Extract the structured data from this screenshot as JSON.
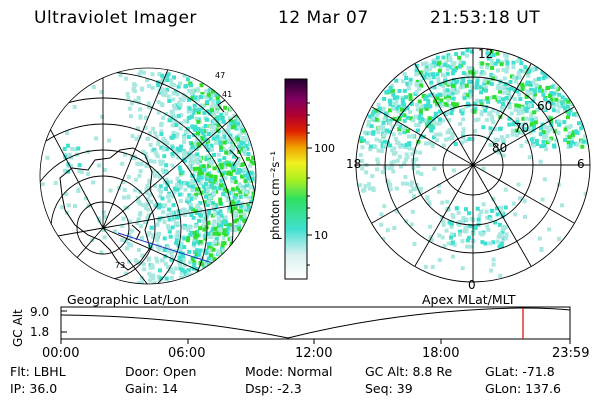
{
  "header": {
    "instrument": "Ultraviolet Imager",
    "date": "12 Mar 07",
    "time": "21:53:18 UT"
  },
  "colorbar": {
    "unit_label": "photon cm⁻²s⁻¹",
    "ticks": [
      "100",
      "10"
    ]
  },
  "maps": {
    "geographic": {
      "label": "Geographic Lat/Lon",
      "coast_labels": [
        "47",
        "41",
        "73"
      ]
    },
    "apex": {
      "label": "Apex  MLat/MLT",
      "mlt_labels": [
        "12",
        "18",
        "6",
        "0"
      ],
      "mlat_labels": [
        "60",
        "70",
        "80"
      ]
    }
  },
  "altitude_plot": {
    "ylabel": "GC Alt",
    "yticks": [
      "9.0",
      "1.8"
    ],
    "xticks": [
      "00:00",
      "06:00",
      "12:00",
      "18:00",
      "23:59"
    ],
    "marker_time": "21:53"
  },
  "info": {
    "filter": "Flt: LBHL",
    "ip": "IP: 36.0",
    "door": "Door: Open",
    "gain": "Gain: 14",
    "mode": "Mode: Normal",
    "dsp": "Dsp:    -2.3",
    "gc_alt": "GC Alt: 8.8 Re",
    "seq": "Seq: 39",
    "glat": "GLat: -71.8",
    "glon": "GLon: 137.6"
  },
  "colors": {
    "marker": "#e00000",
    "track": "#2030c0",
    "aurora_low": "#a8e8e0",
    "aurora_mid": "#40e0d0",
    "aurora_high": "#30e030"
  }
}
